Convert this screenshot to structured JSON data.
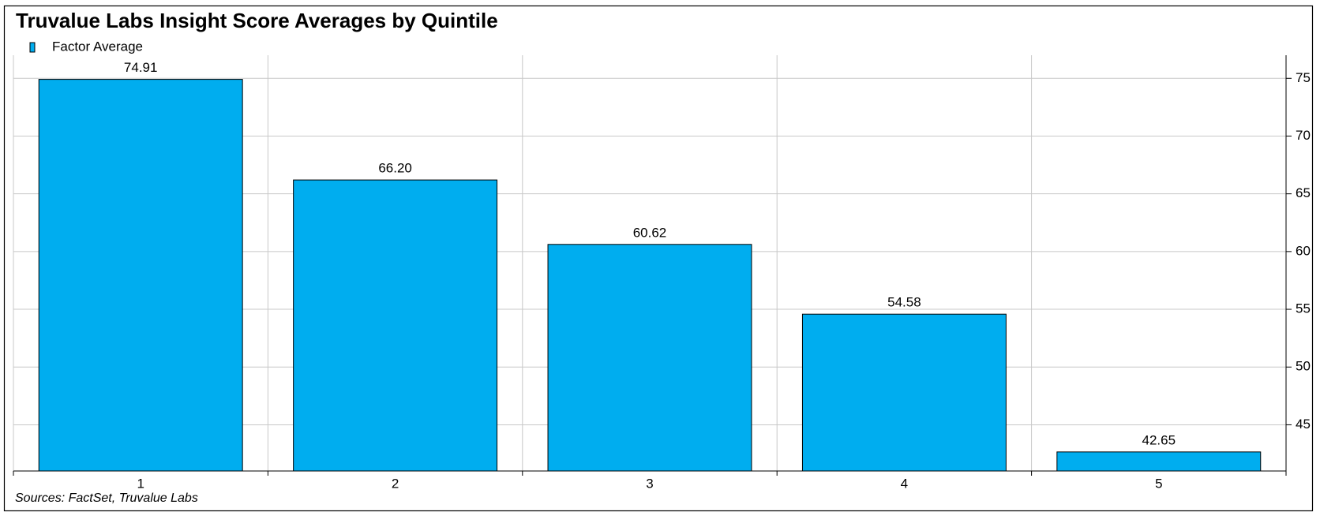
{
  "chart_data": {
    "type": "bar",
    "title": "Truvalue Labs Insight Score Averages by Quintile",
    "categories": [
      "1",
      "2",
      "3",
      "4",
      "5"
    ],
    "series": [
      {
        "name": "Factor Average",
        "color": "#00adef",
        "values": [
          74.91,
          66.2,
          60.62,
          54.58,
          42.65
        ],
        "value_labels": [
          "74.91",
          "66.20",
          "60.62",
          "54.58",
          "42.65"
        ]
      }
    ],
    "ylim": [
      41,
      77
    ],
    "yticks": [
      45,
      50,
      55,
      60,
      65,
      70,
      75
    ],
    "grid": true,
    "y_axis_side": "right",
    "legend": "top-left",
    "source": "Sources: FactSet, Truvalue Labs"
  }
}
